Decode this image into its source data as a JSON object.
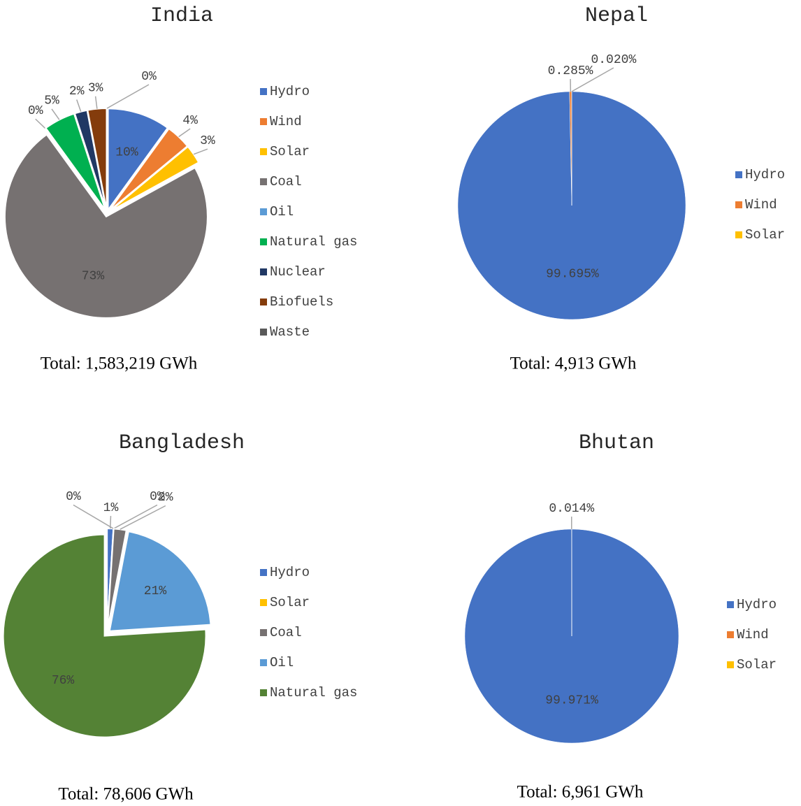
{
  "chart_data": [
    {
      "type": "pie",
      "title": "India",
      "categories": [
        "Hydro",
        "Wind",
        "Solar",
        "Coal",
        "Oil",
        "Natural gas",
        "Nuclear",
        "Biofuels",
        "Waste"
      ],
      "values": [
        10,
        4,
        3,
        73,
        0,
        5,
        2,
        3,
        0
      ],
      "value_labels": [
        "10%",
        "4%",
        "3%",
        "73%",
        "0%",
        "5%",
        "2%",
        "3%",
        "0%"
      ],
      "colors": [
        "#4472c4",
        "#ed7d31",
        "#ffc000",
        "#767171",
        "#5b9bd5",
        "#00b050",
        "#203864",
        "#843c0c",
        "#595959"
      ],
      "explode": true,
      "caption": "Total: 1,583,219 GWh"
    },
    {
      "type": "pie",
      "title": "Nepal",
      "categories": [
        "Hydro",
        "Wind",
        "Solar"
      ],
      "values": [
        99.695,
        0.285,
        0.02
      ],
      "value_labels": [
        "99.695%",
        "0.285%",
        "0.020%"
      ],
      "colors": [
        "#4472c4",
        "#ed7d31",
        "#ffc000"
      ],
      "explode": false,
      "caption": "Total: 4,913 GWh"
    },
    {
      "type": "pie",
      "title": "Bangladesh",
      "categories": [
        "Hydro",
        null,
        "Solar",
        "Coal",
        "Oil",
        "Natural gas"
      ],
      "values": [
        1,
        0,
        0,
        2,
        21,
        76
      ],
      "value_labels": [
        "1%",
        "0%",
        "0%",
        "2%",
        "21%",
        "76%"
      ],
      "colors": [
        "#4472c4",
        "#ed7d31",
        "#ffc000",
        "#767171",
        "#5b9bd5",
        "#548235"
      ],
      "explode": true,
      "caption": "Total: 78,606 GWh"
    },
    {
      "type": "pie",
      "title": "Bhutan",
      "categories": [
        "Hydro",
        "Wind",
        "Solar"
      ],
      "values": [
        99.971,
        0.014,
        0.015
      ],
      "value_labels": [
        "99.971%",
        "0.014%",
        null
      ],
      "colors": [
        "#4472c4",
        "#ed7d31",
        "#ffc000"
      ],
      "explode": false,
      "caption": "Total: 6,961 GWh"
    }
  ]
}
